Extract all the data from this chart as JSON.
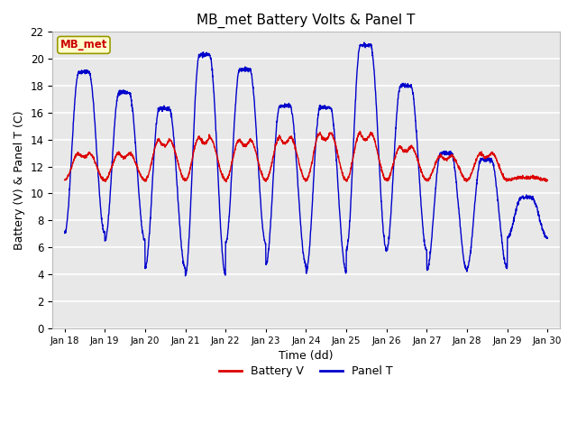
{
  "title": "MB_met Battery Volts & Panel T",
  "xlabel": "Time (dd)",
  "ylabel": "Battery (V) & Panel T (C)",
  "annotation": "MB_met",
  "annotation_color": "#cc0000",
  "annotation_bg": "#ffffcc",
  "annotation_border": "#999900",
  "ylim": [
    0,
    22
  ],
  "yticks": [
    0,
    2,
    4,
    6,
    8,
    10,
    12,
    14,
    16,
    18,
    20,
    22
  ],
  "xtick_labels": [
    "Jan 18",
    "Jan 19",
    "Jan 20",
    "Jan 21",
    "Jan 22",
    "Jan 23",
    "Jan 24",
    "Jan 25",
    "Jan 26",
    "Jan 27",
    "Jan 28",
    "Jan 29",
    "Jan 30"
  ],
  "plot_bg": "#e8e8e8",
  "grid_color": "#ffffff",
  "battery_color": "#dd0000",
  "panel_color": "#0000cc",
  "line_width": 1.0,
  "fig_bg": "#ffffff",
  "panel_peaks": [
    19,
    17.5,
    16.3,
    20.3,
    19.2,
    16.5,
    16.4,
    21.0,
    18.0,
    13.0,
    12.5,
    9.7
  ],
  "panel_nights": [
    7.0,
    6.5,
    4.5,
    4.0,
    6.3,
    4.7,
    4.2,
    5.8,
    5.8,
    4.3,
    4.5,
    6.7
  ],
  "battery_peaks": [
    13.0,
    13.0,
    14.0,
    14.2,
    14.0,
    14.2,
    14.5,
    14.5,
    13.5,
    12.8,
    13.0,
    11.2
  ],
  "battery_base": 11.0
}
